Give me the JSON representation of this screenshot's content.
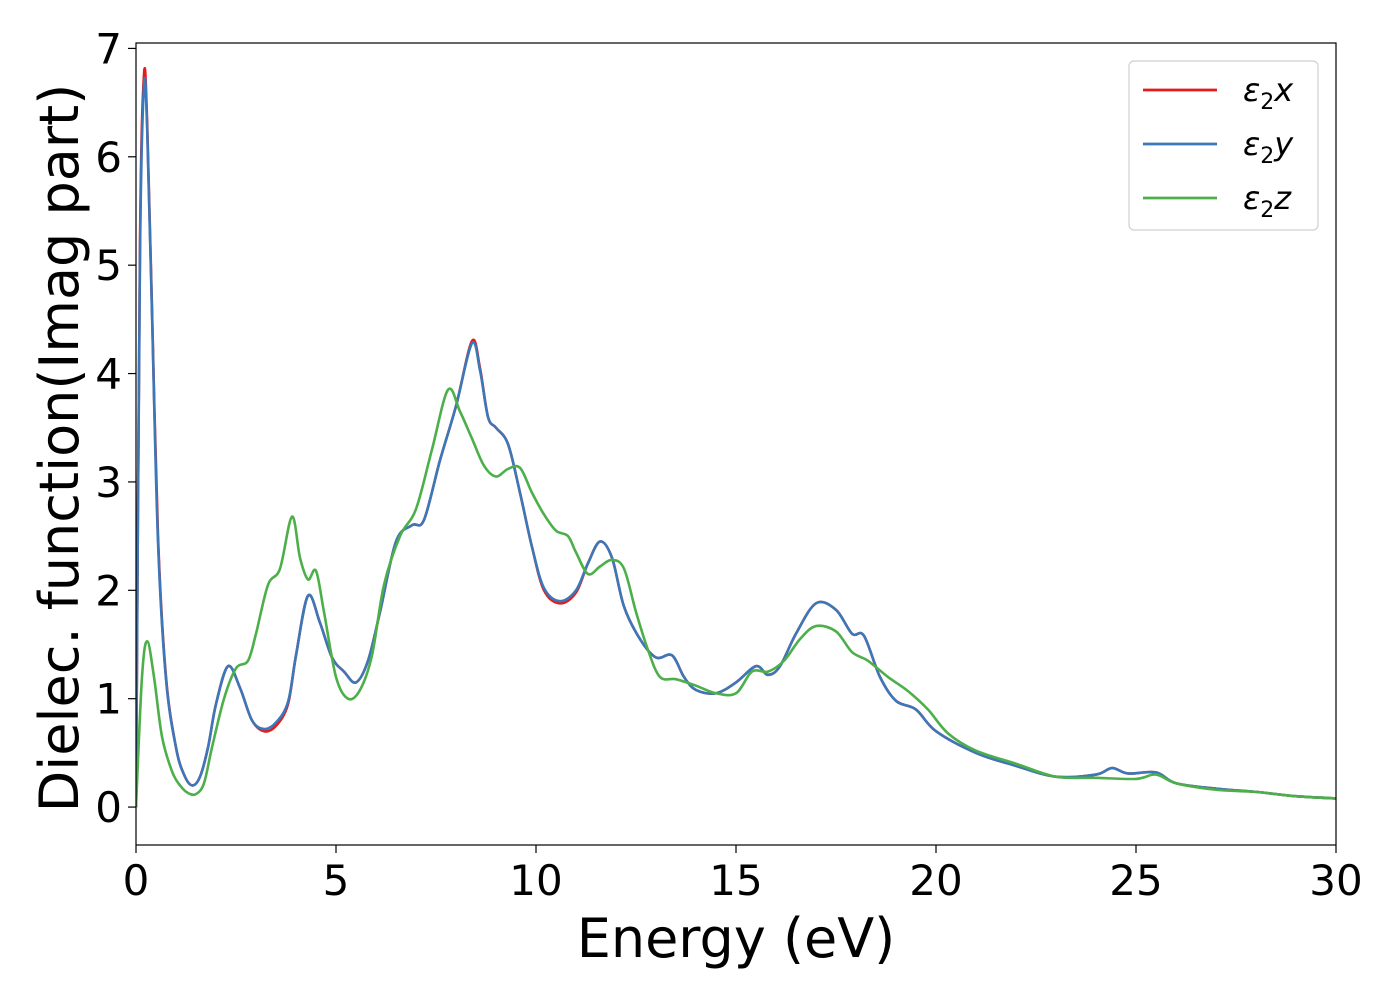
{
  "chart_data": {
    "type": "line",
    "xlabel": "Energy (eV)",
    "ylabel": "Dielec. function(Imag part)",
    "xlim": [
      0,
      30
    ],
    "ylim": [
      -0.35,
      7.05
    ],
    "xticks": [
      "0",
      "5",
      "10",
      "15",
      "20",
      "25",
      "30"
    ],
    "yticks": [
      "0",
      "1",
      "2",
      "3",
      "4",
      "5",
      "6",
      "7"
    ],
    "grid": false,
    "legend_position": "top-right",
    "series": [
      {
        "name": "ε2x",
        "legend_base": "ε",
        "legend_sub": "2",
        "legend_var": "x",
        "color": "#e41a1c",
        "x": [
          0,
          0.1,
          0.2,
          0.28,
          0.4,
          0.55,
          0.75,
          1.0,
          1.2,
          1.4,
          1.6,
          1.8,
          2.0,
          2.3,
          2.6,
          2.9,
          3.2,
          3.5,
          3.8,
          4.0,
          4.3,
          4.6,
          4.9,
          5.2,
          5.5,
          5.8,
          6.1,
          6.5,
          6.9,
          7.2,
          7.6,
          8.0,
          8.4,
          8.6,
          8.8,
          9.0,
          9.3,
          9.6,
          9.9,
          10.2,
          10.6,
          11.0,
          11.3,
          11.6,
          11.9,
          12.2,
          12.6,
          13.0,
          13.4,
          13.7,
          14.0,
          14.5,
          15.0,
          15.5,
          15.8,
          16.1,
          16.5,
          17.0,
          17.5,
          17.9,
          18.2,
          18.6,
          19.0,
          19.5,
          20.0,
          21.0,
          22.0,
          23.0,
          24.0,
          24.4,
          24.8,
          25.5,
          26.0,
          27.0,
          28.0,
          29.0,
          30.0
        ],
        "values": [
          0.0,
          5.2,
          6.76,
          6.3,
          4.6,
          2.5,
          1.2,
          0.55,
          0.3,
          0.2,
          0.28,
          0.55,
          0.95,
          1.3,
          1.1,
          0.8,
          0.7,
          0.75,
          0.95,
          1.4,
          1.95,
          1.7,
          1.38,
          1.25,
          1.15,
          1.35,
          1.8,
          2.45,
          2.6,
          2.65,
          3.2,
          3.7,
          4.3,
          4.05,
          3.6,
          3.5,
          3.35,
          2.9,
          2.4,
          2.0,
          1.88,
          1.98,
          2.25,
          2.45,
          2.3,
          1.85,
          1.55,
          1.38,
          1.4,
          1.2,
          1.08,
          1.05,
          1.15,
          1.3,
          1.22,
          1.3,
          1.6,
          1.88,
          1.82,
          1.6,
          1.58,
          1.2,
          0.98,
          0.9,
          0.7,
          0.5,
          0.38,
          0.28,
          0.3,
          0.36,
          0.31,
          0.32,
          0.22,
          0.17,
          0.14,
          0.1,
          0.08
        ]
      },
      {
        "name": "ε2y",
        "legend_base": "ε",
        "legend_sub": "2",
        "legend_var": "y",
        "color": "#3a78b9",
        "x": [
          0,
          0.1,
          0.2,
          0.28,
          0.4,
          0.55,
          0.75,
          1.0,
          1.2,
          1.4,
          1.6,
          1.8,
          2.0,
          2.3,
          2.6,
          2.9,
          3.2,
          3.5,
          3.8,
          4.0,
          4.3,
          4.6,
          4.9,
          5.2,
          5.5,
          5.8,
          6.1,
          6.5,
          6.9,
          7.2,
          7.6,
          8.0,
          8.4,
          8.6,
          8.8,
          9.0,
          9.3,
          9.6,
          9.9,
          10.2,
          10.6,
          11.0,
          11.3,
          11.6,
          11.9,
          12.2,
          12.6,
          13.0,
          13.4,
          13.7,
          14.0,
          14.5,
          15.0,
          15.5,
          15.8,
          16.1,
          16.5,
          17.0,
          17.5,
          17.9,
          18.2,
          18.6,
          19.0,
          19.5,
          20.0,
          21.0,
          22.0,
          23.0,
          24.0,
          24.4,
          24.8,
          25.5,
          26.0,
          27.0,
          28.0,
          29.0,
          30.0
        ],
        "values": [
          0.0,
          5.1,
          6.66,
          6.25,
          4.55,
          2.45,
          1.18,
          0.55,
          0.3,
          0.2,
          0.28,
          0.55,
          0.95,
          1.3,
          1.1,
          0.8,
          0.72,
          0.78,
          0.97,
          1.4,
          1.95,
          1.7,
          1.38,
          1.25,
          1.15,
          1.35,
          1.8,
          2.45,
          2.6,
          2.65,
          3.2,
          3.7,
          4.28,
          4.03,
          3.6,
          3.5,
          3.35,
          2.9,
          2.4,
          2.02,
          1.9,
          2.0,
          2.25,
          2.45,
          2.3,
          1.85,
          1.55,
          1.38,
          1.4,
          1.2,
          1.08,
          1.05,
          1.15,
          1.3,
          1.22,
          1.3,
          1.6,
          1.88,
          1.82,
          1.6,
          1.58,
          1.2,
          0.98,
          0.9,
          0.7,
          0.5,
          0.38,
          0.28,
          0.3,
          0.36,
          0.31,
          0.32,
          0.22,
          0.17,
          0.14,
          0.1,
          0.08
        ]
      },
      {
        "name": "ε2z",
        "legend_base": "ε",
        "legend_sub": "2",
        "legend_var": "z",
        "color": "#4daf4a",
        "x": [
          0,
          0.15,
          0.28,
          0.45,
          0.65,
          0.9,
          1.1,
          1.3,
          1.5,
          1.7,
          1.9,
          2.2,
          2.5,
          2.8,
          3.0,
          3.3,
          3.6,
          3.9,
          4.1,
          4.3,
          4.5,
          4.7,
          5.0,
          5.3,
          5.6,
          5.9,
          6.2,
          6.6,
          7.0,
          7.4,
          7.8,
          8.1,
          8.4,
          8.7,
          9.0,
          9.3,
          9.6,
          9.9,
          10.2,
          10.5,
          10.8,
          11.0,
          11.3,
          11.6,
          11.9,
          12.2,
          12.5,
          12.8,
          13.1,
          13.5,
          14.0,
          14.5,
          15.0,
          15.4,
          15.8,
          16.2,
          16.6,
          17.0,
          17.5,
          17.9,
          18.3,
          18.8,
          19.3,
          19.8,
          20.3,
          21.0,
          22.0,
          23.0,
          24.0,
          25.0,
          25.5,
          26.0,
          27.0,
          28.0,
          29.0,
          30.0
        ],
        "values": [
          0.0,
          1.2,
          1.53,
          1.2,
          0.65,
          0.33,
          0.2,
          0.13,
          0.12,
          0.22,
          0.55,
          1.0,
          1.28,
          1.35,
          1.6,
          2.05,
          2.2,
          2.68,
          2.3,
          2.1,
          2.18,
          1.8,
          1.2,
          1.0,
          1.08,
          1.4,
          2.05,
          2.5,
          2.75,
          3.3,
          3.85,
          3.65,
          3.4,
          3.15,
          3.05,
          3.12,
          3.13,
          2.9,
          2.7,
          2.55,
          2.5,
          2.35,
          2.15,
          2.22,
          2.28,
          2.2,
          1.8,
          1.45,
          1.2,
          1.18,
          1.12,
          1.05,
          1.05,
          1.25,
          1.25,
          1.35,
          1.55,
          1.67,
          1.62,
          1.43,
          1.35,
          1.2,
          1.07,
          0.9,
          0.68,
          0.52,
          0.4,
          0.28,
          0.27,
          0.26,
          0.3,
          0.22,
          0.16,
          0.14,
          0.1,
          0.08
        ]
      }
    ]
  }
}
